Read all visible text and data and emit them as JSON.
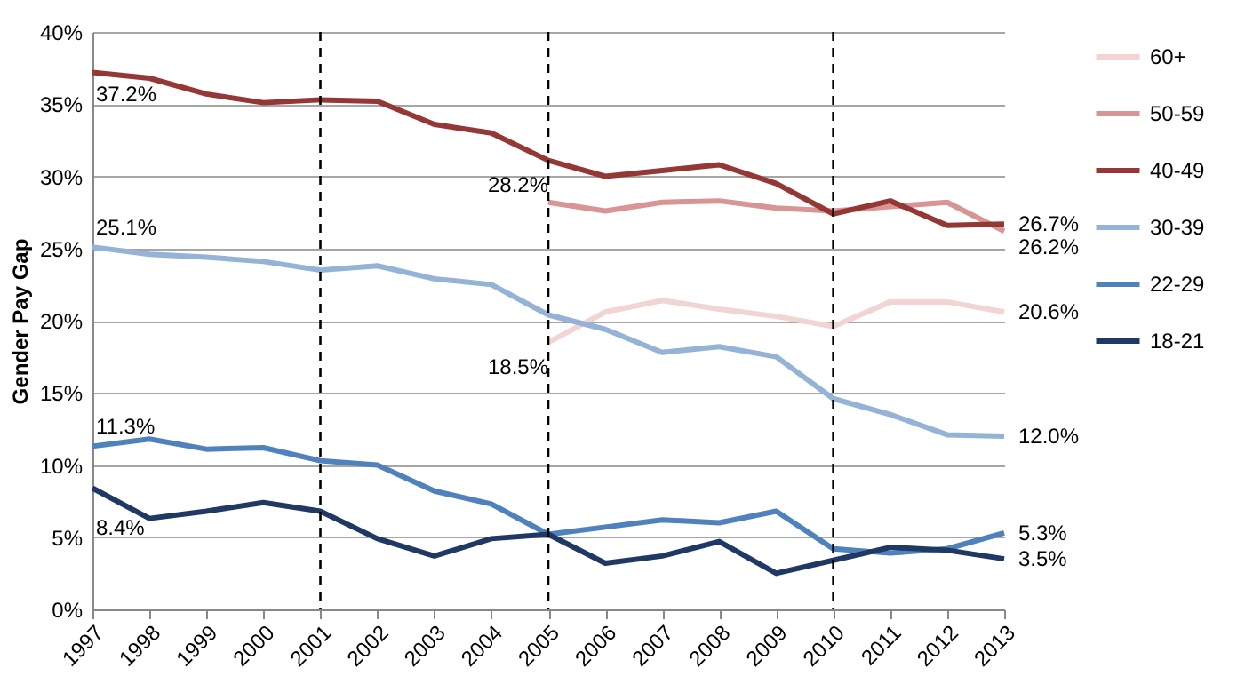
{
  "chart_data": {
    "type": "line",
    "ylabel": "Gender Pay Gap",
    "categories": [
      "1997",
      "1998",
      "1999",
      "2000",
      "2001",
      "2002",
      "2003",
      "2004",
      "2005",
      "2006",
      "2007",
      "2008",
      "2009",
      "2010",
      "2011",
      "2012",
      "2013"
    ],
    "ylim": [
      0,
      40
    ],
    "yticks": [
      {
        "value": 0,
        "label": "0%"
      },
      {
        "value": 5,
        "label": "5%"
      },
      {
        "value": 10,
        "label": "10%"
      },
      {
        "value": 15,
        "label": "15%"
      },
      {
        "value": 20,
        "label": "20%"
      },
      {
        "value": 25,
        "label": "25%"
      },
      {
        "value": 30,
        "label": "30%"
      },
      {
        "value": 35,
        "label": "35%"
      },
      {
        "value": 40,
        "label": "40%"
      }
    ],
    "grid": "y",
    "legend": "right",
    "marker": "none",
    "line_style": "solid",
    "series": [
      {
        "name": "60+",
        "color": "#f2d4d3",
        "values": [
          null,
          null,
          null,
          null,
          null,
          null,
          null,
          null,
          18.5,
          20.6,
          21.4,
          20.8,
          20.3,
          19.6,
          21.3,
          21.3,
          20.6
        ],
        "value_labels": [
          null,
          null,
          null,
          null,
          null,
          null,
          null,
          null,
          "18.5%",
          null,
          null,
          null,
          null,
          null,
          null,
          null,
          "20.6%"
        ]
      },
      {
        "name": "50-59",
        "color": "#d99594",
        "values": [
          null,
          null,
          null,
          null,
          null,
          null,
          null,
          null,
          28.2,
          27.6,
          28.2,
          28.3,
          27.8,
          27.6,
          27.9,
          28.2,
          26.2
        ],
        "value_labels": [
          null,
          null,
          null,
          null,
          null,
          null,
          null,
          null,
          "28.2%",
          null,
          null,
          null,
          null,
          null,
          null,
          null,
          "26.2%"
        ]
      },
      {
        "name": "40-49",
        "color": "#953735",
        "values": [
          37.2,
          36.8,
          35.7,
          35.1,
          35.3,
          35.2,
          33.6,
          33.0,
          31.1,
          30.0,
          30.4,
          30.8,
          29.5,
          27.4,
          28.3,
          26.6,
          26.7
        ],
        "value_labels": [
          "37.2%",
          null,
          null,
          null,
          null,
          null,
          null,
          null,
          null,
          null,
          null,
          null,
          null,
          null,
          null,
          null,
          "26.7%"
        ]
      },
      {
        "name": "30-39",
        "color": "#95b3d7",
        "values": [
          25.1,
          24.6,
          24.4,
          24.1,
          23.5,
          23.8,
          22.9,
          22.5,
          20.4,
          19.4,
          17.8,
          18.2,
          17.5,
          14.6,
          13.5,
          12.1,
          12.0
        ],
        "value_labels": [
          "25.1%",
          null,
          null,
          null,
          null,
          null,
          null,
          null,
          null,
          null,
          null,
          null,
          null,
          null,
          null,
          null,
          "12.0%"
        ]
      },
      {
        "name": "22-29",
        "color": "#4f81bd",
        "values": [
          11.3,
          11.8,
          11.1,
          11.2,
          10.3,
          10.0,
          8.2,
          7.3,
          5.2,
          5.7,
          6.2,
          6.0,
          6.8,
          4.2,
          3.9,
          4.2,
          5.3
        ],
        "value_labels": [
          "11.3%",
          null,
          null,
          null,
          null,
          null,
          null,
          null,
          null,
          null,
          null,
          null,
          null,
          null,
          null,
          null,
          "5.3%"
        ]
      },
      {
        "name": "18-21",
        "color": "#1f3864",
        "values": [
          8.4,
          6.3,
          6.8,
          7.4,
          6.8,
          4.9,
          3.7,
          4.9,
          5.2,
          3.2,
          3.7,
          4.7,
          2.5,
          3.4,
          4.3,
          4.1,
          3.5
        ],
        "value_labels": [
          "8.4%",
          null,
          null,
          null,
          null,
          null,
          null,
          null,
          null,
          null,
          null,
          null,
          null,
          null,
          null,
          null,
          "3.5%"
        ]
      }
    ],
    "ref_lines": [
      {
        "axis": "x",
        "value": "2001",
        "color": "#000000",
        "line_style": "dashed"
      },
      {
        "axis": "x",
        "value": "2005",
        "color": "#000000",
        "line_style": "dashed"
      },
      {
        "axis": "x",
        "value": "2010",
        "color": "#000000",
        "line_style": "dashed"
      }
    ]
  }
}
